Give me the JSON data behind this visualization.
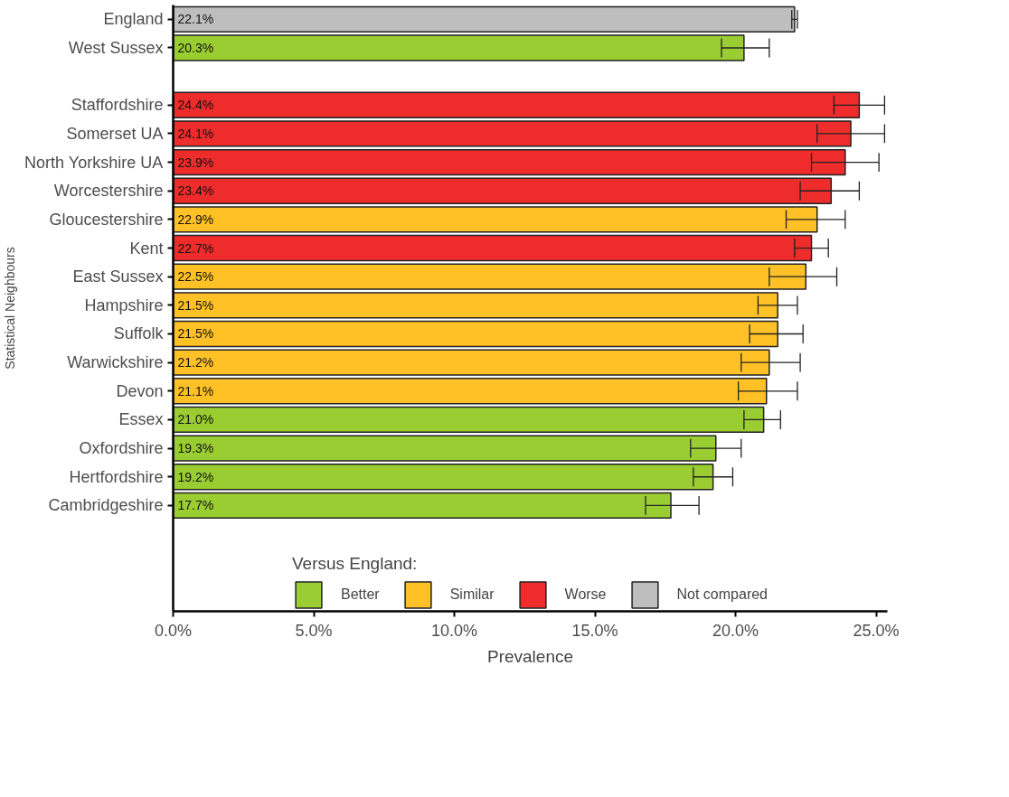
{
  "chart_data": {
    "type": "bar",
    "orientation": "horizontal",
    "xlabel": "Prevalence",
    "ylabel": "Statistical Neighbours",
    "legend_title": "Versus England:",
    "legend": "bottom",
    "grid": false,
    "categories": [
      "England",
      "West Sussex",
      null,
      "Staffordshire",
      "Somerset UA",
      "North Yorkshire UA",
      "Worcestershire",
      "Gloucestershire",
      "Kent",
      "East Sussex",
      "Hampshire",
      "Suffolk",
      "Warwickshire",
      "Devon",
      "Essex",
      "Oxfordshire",
      "Hertfordshire",
      "Cambridgeshire"
    ],
    "xlim": [
      0,
      25.4
    ],
    "xticks": [
      {
        "value": 0,
        "label": "0.0%"
      },
      {
        "value": 5,
        "label": "5.0%"
      },
      {
        "value": 10,
        "label": "10.0%"
      },
      {
        "value": 15,
        "label": "15.0%"
      },
      {
        "value": 20,
        "label": "20.0%"
      },
      {
        "value": 25,
        "label": "25.0%"
      }
    ],
    "series": [
      {
        "name": "Better",
        "color": "#9acd32",
        "values": [
          null,
          20.3,
          null,
          null,
          null,
          null,
          null,
          null,
          null,
          null,
          null,
          null,
          null,
          null,
          21.0,
          19.3,
          19.2,
          17.7
        ],
        "value_labels": [
          null,
          "20.3%",
          null,
          null,
          null,
          null,
          null,
          null,
          null,
          null,
          null,
          null,
          null,
          null,
          "21.0%",
          "19.3%",
          "19.2%",
          "17.7%"
        ],
        "errors": [
          null,
          [
            19.5,
            21.2
          ],
          null,
          null,
          null,
          null,
          null,
          null,
          null,
          null,
          null,
          null,
          null,
          null,
          [
            20.3,
            21.6
          ],
          [
            18.4,
            20.2
          ],
          [
            18.5,
            19.9
          ],
          [
            16.8,
            18.7
          ]
        ]
      },
      {
        "name": "Similar",
        "color": "#ffc125",
        "values": [
          null,
          null,
          null,
          null,
          null,
          null,
          null,
          22.9,
          null,
          22.5,
          21.5,
          21.5,
          21.2,
          21.1,
          null,
          null,
          null,
          null
        ],
        "value_labels": [
          null,
          null,
          null,
          null,
          null,
          null,
          null,
          "22.9%",
          null,
          "22.5%",
          "21.5%",
          "21.5%",
          "21.2%",
          "21.1%",
          null,
          null,
          null,
          null
        ],
        "errors": [
          null,
          null,
          null,
          null,
          null,
          null,
          null,
          [
            21.8,
            23.9
          ],
          null,
          [
            21.2,
            23.6
          ],
          [
            20.8,
            22.2
          ],
          [
            20.5,
            22.4
          ],
          [
            20.2,
            22.3
          ],
          [
            20.1,
            22.2
          ],
          null,
          null,
          null,
          null
        ]
      },
      {
        "name": "Worse",
        "color": "#ee2c2c",
        "values": [
          null,
          null,
          null,
          24.4,
          24.1,
          23.9,
          23.4,
          null,
          22.7,
          null,
          null,
          null,
          null,
          null,
          null,
          null,
          null,
          null
        ],
        "value_labels": [
          null,
          null,
          null,
          "24.4%",
          "24.1%",
          "23.9%",
          "23.4%",
          null,
          "22.7%",
          null,
          null,
          null,
          null,
          null,
          null,
          null,
          null,
          null
        ],
        "errors": [
          null,
          null,
          null,
          [
            23.5,
            25.3
          ],
          [
            22.9,
            25.3
          ],
          [
            22.7,
            25.1
          ],
          [
            22.3,
            24.4
          ],
          null,
          [
            22.1,
            23.3
          ],
          null,
          null,
          null,
          null,
          null,
          null,
          null,
          null,
          null
        ]
      },
      {
        "name": "Not compared",
        "color": "#bebebe",
        "values": [
          22.1,
          null,
          null,
          null,
          null,
          null,
          null,
          null,
          null,
          null,
          null,
          null,
          null,
          null,
          null,
          null,
          null,
          null
        ],
        "value_labels": [
          "22.1%",
          null,
          null,
          null,
          null,
          null,
          null,
          null,
          null,
          null,
          null,
          null,
          null,
          null,
          null,
          null,
          null,
          null
        ],
        "errors": [
          [
            22.0,
            22.2
          ],
          null,
          null,
          null,
          null,
          null,
          null,
          null,
          null,
          null,
          null,
          null,
          null,
          null,
          null,
          null,
          null,
          null
        ]
      }
    ]
  }
}
